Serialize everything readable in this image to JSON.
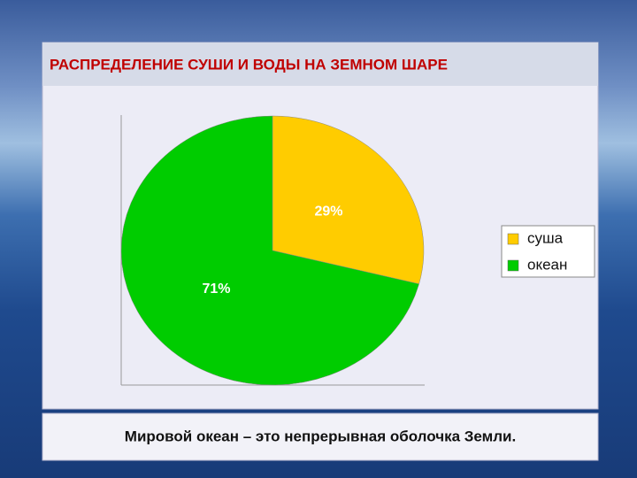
{
  "chart_data": {
    "type": "pie",
    "title": "РАСПРЕДЕЛЕНИЕ СУШИ И ВОДЫ НА ЗЕМНОМ ШАРЕ",
    "categories": [
      "суша",
      "океан"
    ],
    "values": [
      29,
      71
    ],
    "value_labels": [
      "29%",
      "71%"
    ],
    "colors": [
      "#ffcc00",
      "#00cc00"
    ]
  },
  "footer": {
    "text": "Мировой океан – это непрерывная оболочка Земли."
  }
}
